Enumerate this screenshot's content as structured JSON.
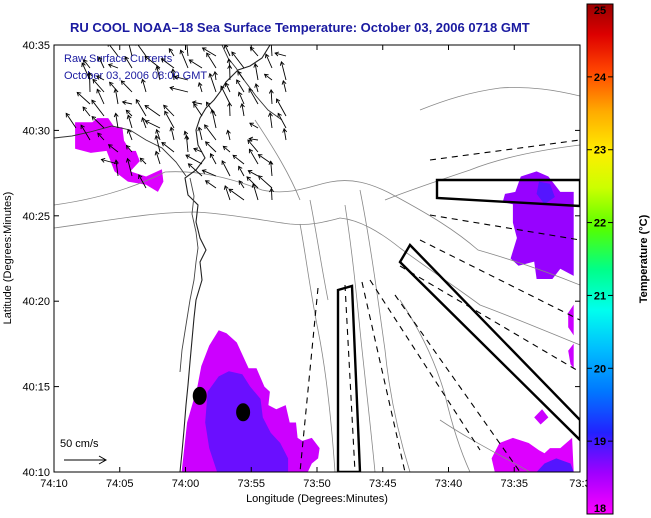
{
  "chart_data": {
    "type": "heatmap",
    "title": "RU COOL  NOAA–18  Sea Surface Temperature:  October 03, 2006 0718 GMT",
    "inset_title": "Raw Surface Currents",
    "inset_date": "October 03, 2006 08:00 GMT",
    "xlabel": "Longitude (Degrees:Minutes)",
    "ylabel": "Latitude (Degrees:Minutes)",
    "colorbar_label": "Temperature (°C)",
    "x_ticks": [
      "74:10",
      "74:05",
      "74:00",
      "73:55",
      "73:50",
      "73:45",
      "73:40",
      "73:35",
      "73:3"
    ],
    "y_ticks": [
      "40:35",
      "40:30",
      "40:25",
      "40:20",
      "40:15",
      "40:10"
    ],
    "colorbar_ticks": [
      "25",
      "24",
      "23",
      "22",
      "21",
      "20",
      "19",
      "18"
    ],
    "xlim_deg": [
      -74.1667,
      -73.5
    ],
    "ylim_deg": [
      40.1667,
      40.5833
    ],
    "clim": [
      18,
      25
    ],
    "scale_label": "50 cm/s",
    "stations": [
      {
        "lon": -73.982,
        "lat": 40.241
      },
      {
        "lon": -73.927,
        "lat": 40.225
      }
    ],
    "sst_patches": [
      {
        "temp": 18.2,
        "pts": [
          [
            -74.14,
            40.508
          ],
          [
            -74.118,
            40.508
          ],
          [
            -74.112,
            40.512
          ],
          [
            -74.098,
            40.512
          ],
          [
            -74.09,
            40.503
          ],
          [
            -74.08,
            40.503
          ],
          [
            -74.078,
            40.49
          ],
          [
            -74.07,
            40.48
          ],
          [
            -74.063,
            40.48
          ],
          [
            -74.058,
            40.47
          ],
          [
            -74.07,
            40.46
          ],
          [
            -74.05,
            40.455
          ],
          [
            -74.03,
            40.462
          ],
          [
            -74.028,
            40.45
          ],
          [
            -74.035,
            40.44
          ],
          [
            -74.05,
            40.447
          ],
          [
            -74.073,
            40.45
          ],
          [
            -74.09,
            40.46
          ],
          [
            -74.1,
            40.48
          ],
          [
            -74.12,
            40.478
          ],
          [
            -74.14,
            40.482
          ]
        ]
      },
      {
        "temp": 18.3,
        "pts": [
          [
            -73.998,
            40.215
          ],
          [
            -73.985,
            40.25
          ],
          [
            -73.98,
            40.27
          ],
          [
            -73.97,
            40.29
          ],
          [
            -73.958,
            40.305
          ],
          [
            -73.948,
            40.302
          ],
          [
            -73.935,
            40.293
          ],
          [
            -73.92,
            40.268
          ],
          [
            -73.91,
            40.268
          ],
          [
            -73.9,
            40.25
          ],
          [
            -73.893,
            40.245
          ],
          [
            -73.895,
            40.232
          ],
          [
            -73.885,
            40.228
          ],
          [
            -73.873,
            40.232
          ],
          [
            -73.868,
            40.215
          ],
          [
            -73.86,
            40.215
          ],
          [
            -73.858,
            40.2
          ],
          [
            -73.852,
            40.197
          ],
          [
            -73.84,
            40.2
          ],
          [
            -73.83,
            40.19
          ],
          [
            -73.832,
            40.18
          ],
          [
            -73.84,
            40.175
          ],
          [
            -73.845,
            40.1667
          ],
          [
            -74.005,
            40.1667
          ]
        ]
      },
      {
        "temp": 18.8,
        "pts": [
          [
            -73.972,
            40.245
          ],
          [
            -73.958,
            40.26
          ],
          [
            -73.945,
            40.265
          ],
          [
            -73.928,
            40.262
          ],
          [
            -73.918,
            40.25
          ],
          [
            -73.905,
            40.238
          ],
          [
            -73.902,
            40.22
          ],
          [
            -73.892,
            40.205
          ],
          [
            -73.88,
            40.195
          ],
          [
            -73.87,
            40.18
          ],
          [
            -73.87,
            40.1667
          ],
          [
            -73.96,
            40.1667
          ],
          [
            -73.97,
            40.19
          ],
          [
            -73.975,
            40.215
          ]
        ]
      },
      {
        "temp": 18.6,
        "pts": [
          [
            -73.588,
            40.375
          ],
          [
            -73.578,
            40.368
          ],
          [
            -73.558,
            40.372
          ],
          [
            -73.555,
            40.355
          ],
          [
            -73.535,
            40.355
          ],
          [
            -73.525,
            40.365
          ],
          [
            -73.508,
            40.358
          ],
          [
            -73.508,
            40.44
          ],
          [
            -73.525,
            40.44
          ],
          [
            -73.54,
            40.455
          ],
          [
            -73.555,
            40.46
          ],
          [
            -73.575,
            40.455
          ],
          [
            -73.582,
            40.44
          ],
          [
            -73.595,
            40.438
          ],
          [
            -73.598,
            40.43
          ],
          [
            -73.585,
            40.428
          ],
          [
            -73.585,
            40.41
          ],
          [
            -73.58,
            40.395
          ]
        ]
      },
      {
        "temp": 18.9,
        "pts": [
          [
            -73.552,
            40.45
          ],
          [
            -73.538,
            40.448
          ],
          [
            -73.532,
            40.435
          ],
          [
            -73.545,
            40.428
          ],
          [
            -73.555,
            40.438
          ]
        ]
      },
      {
        "temp": 18.3,
        "pts": [
          [
            -73.508,
            40.33
          ],
          [
            -73.515,
            40.322
          ],
          [
            -73.515,
            40.308
          ],
          [
            -73.508,
            40.3
          ]
        ]
      },
      {
        "temp": 18.3,
        "pts": [
          [
            -73.508,
            40.292
          ],
          [
            -73.515,
            40.285
          ],
          [
            -73.512,
            40.272
          ],
          [
            -73.508,
            40.268
          ]
        ]
      },
      {
        "temp": 18.3,
        "pts": [
          [
            -73.548,
            40.228
          ],
          [
            -73.54,
            40.22
          ],
          [
            -73.55,
            40.213
          ],
          [
            -73.558,
            40.22
          ]
        ]
      },
      {
        "temp": 18.2,
        "pts": [
          [
            -73.608,
            40.1667
          ],
          [
            -73.612,
            40.18
          ],
          [
            -73.602,
            40.195
          ],
          [
            -73.585,
            40.2
          ],
          [
            -73.565,
            40.195
          ],
          [
            -73.552,
            40.188
          ],
          [
            -73.545,
            40.185
          ],
          [
            -73.538,
            40.19
          ],
          [
            -73.525,
            40.19
          ],
          [
            -73.51,
            40.2
          ],
          [
            -73.508,
            40.1667
          ]
        ]
      },
      {
        "temp": 18.9,
        "pts": [
          [
            -73.555,
            40.1667
          ],
          [
            -73.545,
            40.175
          ],
          [
            -73.53,
            40.18
          ],
          [
            -73.512,
            40.175
          ],
          [
            -73.508,
            40.1667
          ]
        ]
      }
    ]
  }
}
